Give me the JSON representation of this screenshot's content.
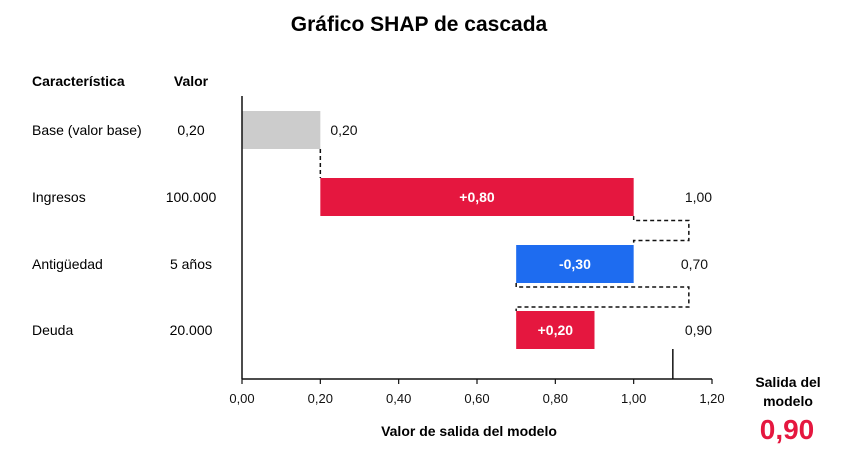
{
  "chart_data": {
    "type": "waterfall",
    "title": "Gráfico SHAP de cascada",
    "columns": {
      "feature": "Característica",
      "value": "Valor"
    },
    "rows": [
      {
        "feature": "Base (valor base)",
        "value": "0,20",
        "start": 0.0,
        "end": 0.2,
        "bar_label": "",
        "end_label": "0,20",
        "color": "#cccccc"
      },
      {
        "feature": "Ingresos",
        "value": "100.000",
        "start": 0.2,
        "end": 1.0,
        "bar_label": "+0,80",
        "end_label": "1,00",
        "color": "#e5173f"
      },
      {
        "feature": "Antigüedad",
        "value": "5 años",
        "start": 1.0,
        "end": 0.7,
        "bar_label": "-0,30",
        "end_label": "0,70",
        "color": "#1e6cf0"
      },
      {
        "feature": "Deuda",
        "value": "20.000",
        "start": 0.7,
        "end": 0.9,
        "bar_label": "+0,20",
        "end_label": "0,90",
        "color": "#e5173f"
      }
    ],
    "xlabel": "Valor de salida del modelo",
    "xlim": [
      0,
      1.2
    ],
    "xticks": [
      0,
      0.2,
      0.4,
      0.6,
      0.8,
      1.0,
      1.2
    ],
    "xtick_labels": [
      "0,00",
      "0,20",
      "0,40",
      "0,60",
      "0,80",
      "1,00",
      "1,20"
    ],
    "output": {
      "label_line1": "Salida del",
      "label_line2": "modelo",
      "value": "0,90",
      "color": "#e5173f"
    }
  }
}
